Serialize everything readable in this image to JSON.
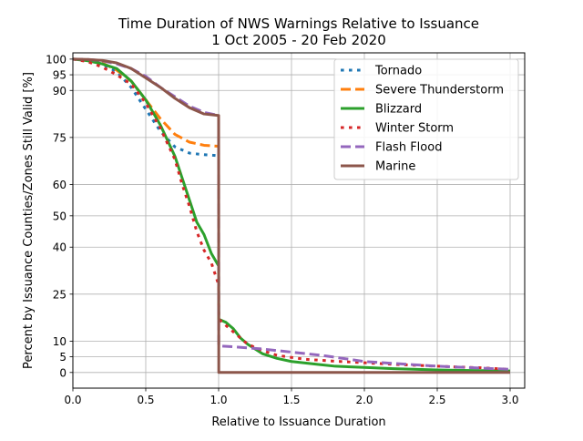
{
  "chart_data": {
    "type": "line",
    "title": "Time Duration of NWS Warnings Relative to Issuance",
    "subtitle": "1 Oct 2005 - 20 Feb 2020",
    "xlabel": "Relative to Issuance Duration",
    "ylabel": "Percent by Issuance Counties/Zones Still Valid [%]",
    "xlim": [
      0.0,
      3.1
    ],
    "ylim": [
      -5,
      102
    ],
    "xticks": [
      0.0,
      0.5,
      1.0,
      1.5,
      2.0,
      2.5,
      3.0
    ],
    "xtick_labels": [
      "0.0",
      "0.5",
      "1.0",
      "1.5",
      "2.0",
      "2.5",
      "3.0"
    ],
    "yticks": [
      0,
      5,
      10,
      25,
      40,
      50,
      60,
      75,
      90,
      95,
      100
    ],
    "ytick_labels": [
      "0",
      "5",
      "10",
      "25",
      "40",
      "50",
      "60",
      "75",
      "90",
      "95",
      "100"
    ],
    "grid": true,
    "legend_position": "top-right",
    "series": [
      {
        "name": "Tornado",
        "color": "#1f77b4",
        "style": "dotted",
        "x": [
          0,
          0.1,
          0.2,
          0.3,
          0.4,
          0.5,
          0.6,
          0.7,
          0.8,
          0.9,
          1.0
        ],
        "y": [
          100,
          99.7,
          98.5,
          96,
          91,
          84,
          77,
          72,
          70,
          69.5,
          69.2
        ]
      },
      {
        "name": "Severe Thunderstorm",
        "color": "#ff7f0e",
        "style": "dashed",
        "x": [
          0,
          0.1,
          0.2,
          0.3,
          0.4,
          0.5,
          0.6,
          0.7,
          0.8,
          0.9,
          1.0
        ],
        "y": [
          100,
          99.8,
          98.8,
          96.5,
          93,
          87,
          81,
          76,
          73.5,
          72.5,
          72.2
        ]
      },
      {
        "name": "Blizzard",
        "color": "#2ca02c",
        "style": "solid",
        "x": [
          0,
          0.1,
          0.2,
          0.3,
          0.4,
          0.5,
          0.6,
          0.7,
          0.75,
          0.8,
          0.85,
          0.9,
          0.95,
          1.0,
          1.001,
          1.05,
          1.1,
          1.15,
          1.2,
          1.3,
          1.4,
          1.5,
          1.6,
          1.7,
          1.8,
          2.0,
          2.2,
          2.5,
          2.8,
          3.0
        ],
        "y": [
          100,
          99.5,
          98.5,
          97,
          93,
          87,
          79,
          69,
          62,
          55,
          48,
          44,
          38,
          34,
          17,
          16,
          14,
          11,
          9,
          6,
          4.5,
          3.5,
          3,
          2.5,
          2,
          1.6,
          1.2,
          0.8,
          0.6,
          0.5
        ]
      },
      {
        "name": "Winter Storm",
        "color": "#d62728",
        "style": "dotted",
        "x": [
          0,
          0.1,
          0.2,
          0.3,
          0.4,
          0.5,
          0.6,
          0.7,
          0.75,
          0.8,
          0.85,
          0.9,
          0.95,
          1.0,
          1.001,
          1.1,
          1.2,
          1.3,
          1.4,
          1.5,
          1.6,
          1.8,
          2.0,
          2.2,
          2.5,
          2.8,
          3.0
        ],
        "y": [
          100,
          99.2,
          97.5,
          95,
          92,
          86,
          78,
          68,
          60,
          53,
          45,
          39,
          35,
          28,
          17,
          13,
          9,
          7,
          5.5,
          4.8,
          4.2,
          3.6,
          3.1,
          2.6,
          2,
          1.5,
          1
        ]
      },
      {
        "name": "Flash Flood",
        "color": "#9467bd",
        "style": "dashed",
        "x": [
          0,
          0.1,
          0.2,
          0.3,
          0.4,
          0.5,
          0.6,
          0.7,
          0.8,
          0.9,
          1.0,
          1.001,
          1.1,
          1.3,
          1.5,
          1.7,
          1.9,
          2.0,
          2.5,
          3.0
        ],
        "y": [
          100,
          99.9,
          99.5,
          98.5,
          97,
          94.5,
          91,
          88,
          85,
          83,
          82,
          8.5,
          8.2,
          7.5,
          6.5,
          5.5,
          4.2,
          3.5,
          2,
          1
        ]
      },
      {
        "name": "Marine",
        "color": "#8c564b",
        "style": "solid",
        "x": [
          0,
          0.1,
          0.2,
          0.3,
          0.4,
          0.5,
          0.6,
          0.7,
          0.8,
          0.9,
          1.0,
          1.001,
          1.5,
          2.0,
          2.5,
          3.0
        ],
        "y": [
          100,
          99.9,
          99.6,
          98.8,
          97,
          94,
          91,
          87.5,
          84.5,
          82.5,
          82,
          0,
          0,
          0,
          0,
          0
        ]
      }
    ]
  }
}
